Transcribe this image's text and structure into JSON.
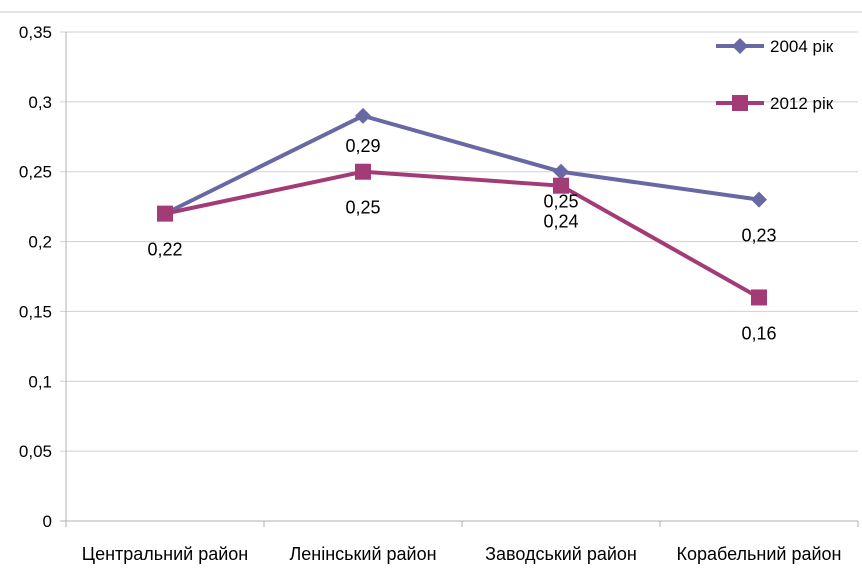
{
  "chart_data": {
    "type": "line",
    "categories": [
      "Центральний район",
      "Ленінський район",
      "Заводський район",
      "Корабельний район"
    ],
    "series": [
      {
        "name": "2004 рік",
        "values": [
          0.22,
          0.29,
          0.25,
          0.23
        ],
        "data_labels": [
          "",
          "0,29",
          "0,25",
          "0,23"
        ],
        "color": "#6868A4",
        "marker": "diamond"
      },
      {
        "name": "2012 рік",
        "values": [
          0.22,
          0.25,
          0.24,
          0.16
        ],
        "data_labels": [
          "0,22",
          "0,25",
          "0,24",
          "0,16"
        ],
        "color": "#A33B76",
        "marker": "square"
      }
    ],
    "y_ticks": [
      0,
      0.05,
      0.1,
      0.15,
      0.2,
      0.25,
      0.3,
      0.35
    ],
    "y_tick_labels": [
      "0",
      "0,05",
      "0,1",
      "0,15",
      "0,2",
      "0,25",
      "0,3",
      "0,35"
    ],
    "ylim": [
      0,
      0.35
    ],
    "grid": true,
    "legend_position": "top-right"
  }
}
